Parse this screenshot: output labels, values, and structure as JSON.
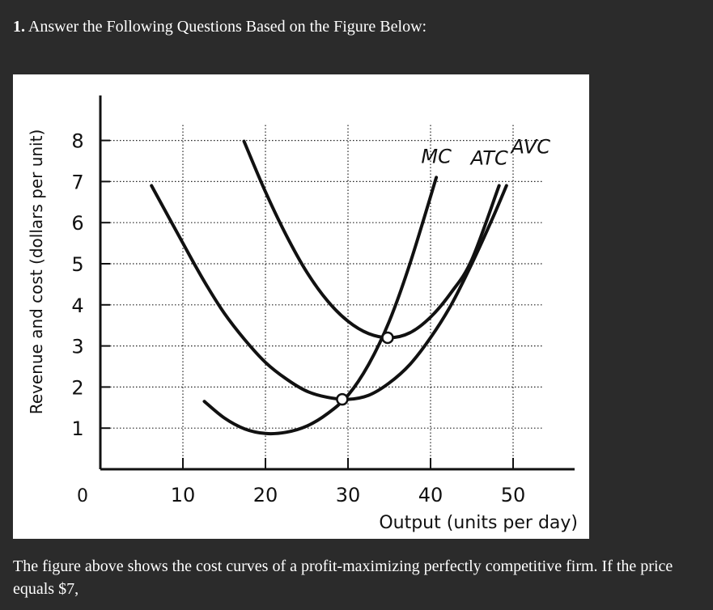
{
  "question": {
    "number": "1.",
    "heading": "Answer the Following Questions Based on the Figure Below:",
    "body": "The figure above shows the cost curves of a profit-maximizing perfectly competitive firm. If the price equals $7,"
  },
  "chart_data": {
    "type": "line",
    "title": "",
    "xlabel": "Output (units per day)",
    "ylabel": "Revenue and cost (dollars per unit)",
    "xlim": [
      0,
      58
    ],
    "ylim": [
      0,
      9
    ],
    "origin_label": "0",
    "x_ticks": [
      "10",
      "20",
      "30",
      "40",
      "50"
    ],
    "x_tick_values": [
      10,
      20,
      30,
      40,
      50
    ],
    "y_ticks": [
      "1",
      "2",
      "3",
      "4",
      "5",
      "6",
      "7",
      "8"
    ],
    "y_tick_values": [
      1,
      2,
      3,
      4,
      5,
      6,
      7,
      8
    ],
    "grid": true,
    "series": [
      {
        "name": "MC",
        "x": [
          12.6,
          15,
          17.5,
          20,
          22.5,
          25,
          27.5,
          30,
          32.5,
          35,
          37.5,
          40.7
        ],
        "y": [
          1.65,
          1.25,
          0.98,
          0.87,
          0.9,
          1.05,
          1.35,
          1.8,
          2.55,
          3.6,
          5.0,
          7.1
        ]
      },
      {
        "name": "ATC",
        "x": [
          17.4,
          20,
          22.5,
          25,
          27.5,
          30,
          32.5,
          35,
          37.5,
          40,
          42.5,
          45,
          48.3
        ],
        "y": [
          7.98,
          6.75,
          5.7,
          4.8,
          4.1,
          3.6,
          3.3,
          3.2,
          3.32,
          3.7,
          4.3,
          5.1,
          6.9
        ]
      },
      {
        "name": "AVC",
        "x": [
          6.2,
          10,
          12.5,
          15,
          17.5,
          20,
          22.5,
          25,
          27.5,
          30,
          32.5,
          35,
          37.5,
          40,
          42.5,
          45,
          47.5,
          49.2
        ],
        "y": [
          6.9,
          5.5,
          4.6,
          3.8,
          3.15,
          2.6,
          2.2,
          1.9,
          1.75,
          1.7,
          1.8,
          2.1,
          2.55,
          3.2,
          4.0,
          5.0,
          6.1,
          6.9
        ]
      }
    ],
    "points": [
      {
        "x": 29.3,
        "y": 1.7
      },
      {
        "x": 34.8,
        "y": 3.2
      }
    ]
  }
}
